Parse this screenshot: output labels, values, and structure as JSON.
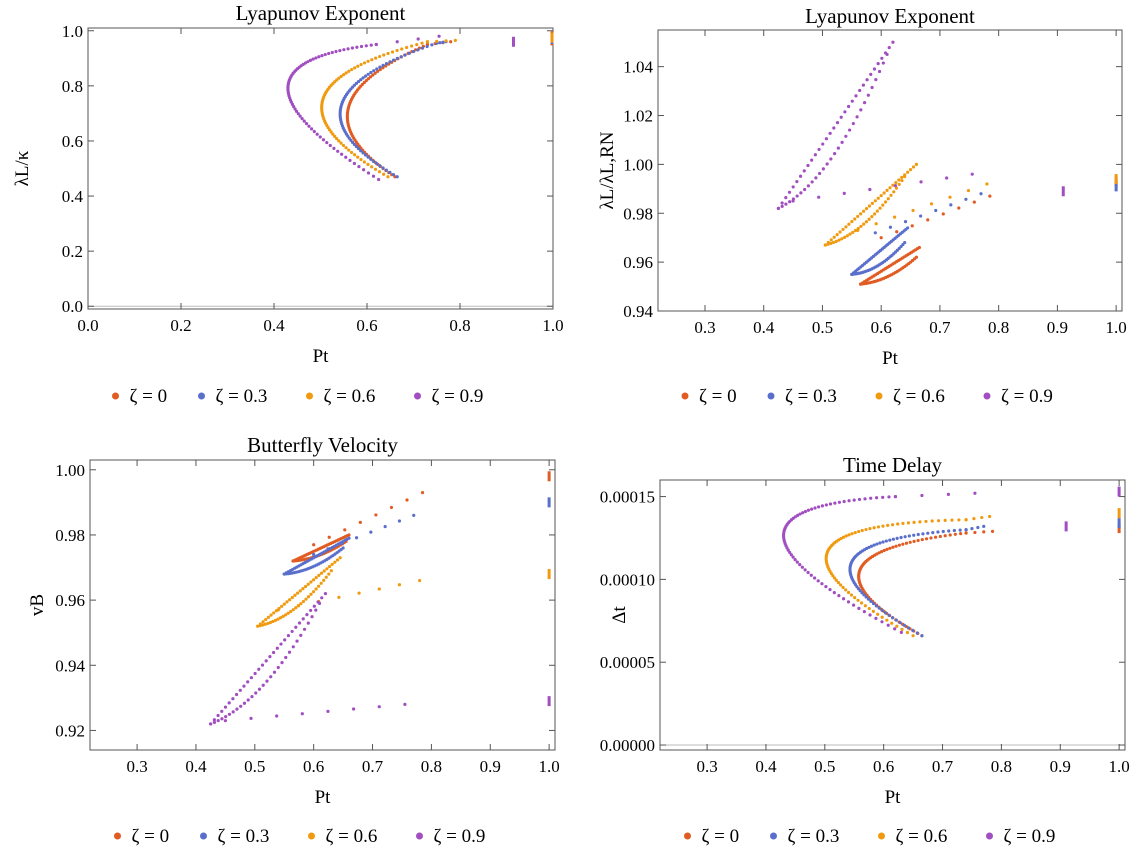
{
  "series_colors": [
    "#e05c23",
    "#5a6fcc",
    "#f09a10",
    "#a14ec0"
  ],
  "legend": [
    "ζ = 0",
    "ζ = 0.3",
    "ζ = 0.6",
    "ζ = 0.9"
  ],
  "chart_data": [
    {
      "id": "p1",
      "type": "scatter",
      "title": "Lyapunov Exponent",
      "xlabel": "Pt",
      "ylabel": "λL/κ",
      "xlim": [
        0,
        1
      ],
      "ylim": [
        -0.01,
        1.01
      ],
      "xticks": [
        0,
        0.2,
        0.4,
        0.6,
        0.8,
        1
      ],
      "xtick_labels": [
        "0.0",
        "0.2",
        "0.4",
        "0.6",
        "0.8",
        "1.0"
      ],
      "yticks": [
        0,
        0.2,
        0.4,
        0.6,
        0.8,
        1
      ],
      "ytick_labels": [
        "0.0",
        "0.2",
        "0.4",
        "0.6",
        "0.8",
        "1.0"
      ],
      "series": [
        {
          "tip": [
            0.66,
            0.47
          ],
          "nose": [
            0.56,
            0.72
          ],
          "top": [
            0.73,
            0.95
          ],
          "outer": [
            0.78,
            0.96
          ],
          "extra": [
            1.0,
            0.965
          ],
          "extra2": [
            1.0,
            0.98
          ]
        },
        {
          "tip": [
            0.665,
            0.47
          ],
          "nose": [
            0.545,
            0.73
          ],
          "top": [
            0.75,
            0.955
          ],
          "outer": [
            0.77,
            0.96
          ],
          "extra": [
            1.0,
            0.97
          ]
        },
        {
          "tip": [
            0.645,
            0.47
          ],
          "nose": [
            0.505,
            0.75
          ],
          "top": [
            0.73,
            0.96
          ],
          "outer": [
            0.79,
            0.965
          ],
          "extra": [
            1.0,
            0.975
          ]
        },
        {
          "tip": [
            0.625,
            0.46
          ],
          "nose": [
            0.43,
            0.79
          ],
          "top": [
            0.62,
            0.95
          ],
          "outer": [
            0.755,
            0.98
          ],
          "extra": [
            0.915,
            0.96
          ]
        }
      ]
    },
    {
      "id": "p2",
      "type": "scatter",
      "title": "Lyapunov Exponent",
      "xlabel": "Pt",
      "ylabel": "λL/λL,RN",
      "xlim": [
        0.22,
        1.01
      ],
      "ylim": [
        0.94,
        1.055
      ],
      "xticks": [
        0.3,
        0.4,
        0.5,
        0.6,
        0.7,
        0.8,
        0.9,
        1
      ],
      "xtick_labels": [
        "0.3",
        "0.4",
        "0.5",
        "0.6",
        "0.7",
        "0.8",
        "0.9",
        "1.0"
      ],
      "yticks": [
        0.94,
        0.96,
        0.98,
        1.0,
        1.02,
        1.04
      ],
      "ytick_labels": [
        "0.94",
        "0.96",
        "0.98",
        "1.00",
        "1.02",
        "1.04"
      ],
      "series": [
        {
          "upper_end": [
            0.665,
            0.966
          ],
          "nose": [
            0.565,
            0.951
          ],
          "lower_end": [
            0.66,
            0.962
          ],
          "tail_start": [
            0.6,
            0.97
          ],
          "tail_end": [
            0.785,
            0.987
          ],
          "extra": [
            1.0,
            0.993
          ]
        },
        {
          "upper_end": [
            0.645,
            0.974
          ],
          "nose": [
            0.55,
            0.955
          ],
          "lower_end": [
            0.64,
            0.968
          ],
          "tail_start": [
            0.59,
            0.972
          ],
          "tail_end": [
            0.77,
            0.988
          ],
          "extra": [
            1.0,
            0.991
          ]
        },
        {
          "upper_end": [
            0.66,
            1.0
          ],
          "nose": [
            0.505,
            0.967
          ],
          "lower_end": [
            0.64,
            0.995
          ],
          "tail_start": [
            0.56,
            0.973
          ],
          "tail_end": [
            0.78,
            0.992
          ],
          "extra": [
            1.0,
            0.994
          ]
        },
        {
          "upper_end": [
            0.62,
            1.05
          ],
          "nose": [
            0.425,
            0.982
          ],
          "lower_end": [
            0.61,
            1.045
          ],
          "tail_start": [
            0.45,
            0.985
          ],
          "tail_end": [
            0.755,
            0.996
          ],
          "extra": [
            0.91,
            0.989
          ]
        }
      ]
    },
    {
      "id": "p3",
      "type": "scatter",
      "title": "Butterfly Velocity",
      "xlabel": "Pt",
      "ylabel": "vB",
      "xlim": [
        0.22,
        1.01
      ],
      "ylim": [
        0.914,
        1.003
      ],
      "xticks": [
        0.3,
        0.4,
        0.5,
        0.6,
        0.7,
        0.8,
        0.9,
        1
      ],
      "xtick_labels": [
        "0.3",
        "0.4",
        "0.5",
        "0.6",
        "0.7",
        "0.8",
        "0.9",
        "1.0"
      ],
      "yticks": [
        0.92,
        0.94,
        0.96,
        0.98,
        1.0
      ],
      "ytick_labels": [
        "0.92",
        "0.94",
        "0.96",
        "0.98",
        "1.00"
      ],
      "series": [
        {
          "upper_end": [
            0.66,
            0.98
          ],
          "nose": [
            0.565,
            0.972
          ],
          "lower_end": [
            0.655,
            0.978
          ],
          "tail_start": [
            0.6,
            0.977
          ],
          "tail_end": [
            0.785,
            0.993
          ],
          "extra": [
            1.0,
            0.998
          ]
        },
        {
          "upper_end": [
            0.66,
            0.979
          ],
          "nose": [
            0.55,
            0.968
          ],
          "lower_end": [
            0.65,
            0.976
          ],
          "tail_start": [
            0.6,
            0.974
          ],
          "tail_end": [
            0.77,
            0.986
          ],
          "extra": [
            1.0,
            0.99
          ]
        },
        {
          "upper_end": [
            0.645,
            0.973
          ],
          "nose": [
            0.505,
            0.952
          ],
          "lower_end": [
            0.63,
            0.969
          ],
          "tail_start": [
            0.54,
            0.957
          ],
          "tail_end": [
            0.78,
            0.966
          ],
          "extra": [
            1.0,
            0.968
          ]
        },
        {
          "upper_end": [
            0.62,
            0.962
          ],
          "nose": [
            0.425,
            0.922
          ],
          "lower_end": [
            0.61,
            0.959
          ],
          "tail_start": [
            0.45,
            0.923
          ],
          "tail_end": [
            0.755,
            0.928
          ],
          "extra": [
            1.0,
            0.929
          ]
        }
      ]
    },
    {
      "id": "p4",
      "type": "scatter",
      "title": "Time Delay",
      "xlabel": "Pt",
      "ylabel": "Δt",
      "xlim": [
        0.22,
        1.01
      ],
      "ylim": [
        -3e-06,
        0.00016
      ],
      "xticks": [
        0.3,
        0.4,
        0.5,
        0.6,
        0.7,
        0.8,
        0.9,
        1
      ],
      "xtick_labels": [
        "0.3",
        "0.4",
        "0.5",
        "0.6",
        "0.7",
        "0.8",
        "0.9",
        "1.0"
      ],
      "yticks": [
        0,
        5e-05,
        0.0001,
        0.00015
      ],
      "ytick_labels": [
        "0.00000",
        "0.00005",
        "0.00010",
        "0.00015"
      ],
      "series": [
        {
          "tip": [
            0.665,
            6.6e-05
          ],
          "nose": [
            0.56,
            0.000106
          ],
          "top": [
            0.74,
            0.000128
          ],
          "outer": [
            0.785,
            0.000129
          ],
          "extra": [
            1.0,
            0.000131
          ]
        },
        {
          "tip": [
            0.665,
            6.6e-05
          ],
          "nose": [
            0.545,
            0.00011
          ],
          "top": [
            0.74,
            0.00013
          ],
          "outer": [
            0.77,
            0.000132
          ],
          "extra": [
            1.0,
            0.000134
          ]
        },
        {
          "tip": [
            0.65,
            6.6e-05
          ],
          "nose": [
            0.505,
            0.000117
          ],
          "top": [
            0.74,
            0.000136
          ],
          "outer": [
            0.78,
            0.000138
          ],
          "extra": [
            1.0,
            0.00014
          ]
        },
        {
          "tip": [
            0.63,
            6.8e-05
          ],
          "nose": [
            0.43,
            0.000126
          ],
          "top": [
            0.62,
            0.00015
          ],
          "outer": [
            0.755,
            0.000152
          ],
          "extra": [
            0.91,
            0.000132
          ],
          "extra2": [
            1.0,
            0.000153
          ]
        }
      ]
    }
  ]
}
